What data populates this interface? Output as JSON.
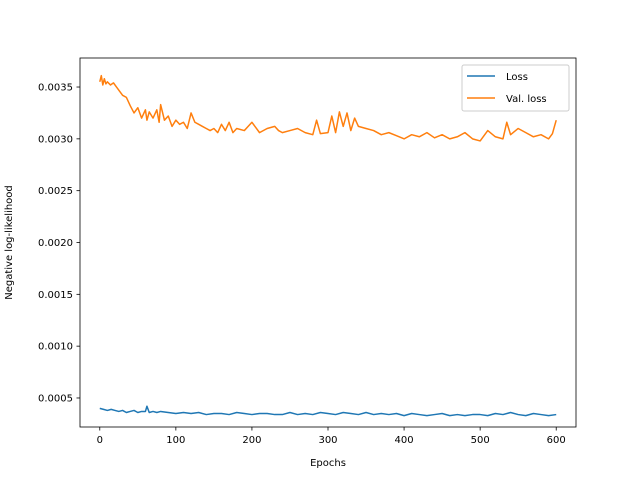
{
  "chart_data": {
    "type": "line",
    "title": "",
    "xlabel": "Epochs",
    "ylabel": "Negative log-likelihood",
    "xlim": [
      -26,
      626
    ],
    "ylim": [
      0.00022,
      0.00378
    ],
    "xticks": [
      {
        "value": 0,
        "label": "0"
      },
      {
        "value": 100,
        "label": "100"
      },
      {
        "value": 200,
        "label": "200"
      },
      {
        "value": 300,
        "label": "300"
      },
      {
        "value": 400,
        "label": "400"
      },
      {
        "value": 500,
        "label": "500"
      },
      {
        "value": 600,
        "label": "600"
      }
    ],
    "yticks": [
      {
        "value": 0.0005,
        "label": "0.0005"
      },
      {
        "value": 0.001,
        "label": "0.0010"
      },
      {
        "value": 0.0015,
        "label": "0.0015"
      },
      {
        "value": 0.002,
        "label": "0.0020"
      },
      {
        "value": 0.0025,
        "label": "0.0025"
      },
      {
        "value": 0.003,
        "label": "0.0030"
      },
      {
        "value": 0.0035,
        "label": "0.0035"
      }
    ],
    "grid": false,
    "legend": {
      "placement": "top-right",
      "entries": [
        "Loss",
        "Val. loss"
      ]
    },
    "series": [
      {
        "name": "Loss",
        "color": "#1f77b4",
        "x": [
          0,
          5,
          10,
          15,
          20,
          25,
          30,
          35,
          40,
          45,
          50,
          55,
          60,
          62,
          65,
          70,
          75,
          80,
          90,
          100,
          110,
          120,
          130,
          140,
          150,
          160,
          170,
          180,
          190,
          200,
          210,
          220,
          230,
          240,
          250,
          260,
          270,
          280,
          290,
          300,
          310,
          320,
          330,
          340,
          350,
          360,
          370,
          380,
          390,
          400,
          410,
          420,
          430,
          440,
          450,
          460,
          470,
          480,
          490,
          500,
          510,
          520,
          530,
          540,
          550,
          560,
          570,
          580,
          590,
          600
        ],
        "y": [
          0.0004,
          0.00039,
          0.00038,
          0.00039,
          0.00038,
          0.00037,
          0.00038,
          0.00036,
          0.00037,
          0.00038,
          0.00036,
          0.00037,
          0.00037,
          0.00042,
          0.00036,
          0.00037,
          0.00036,
          0.00037,
          0.00036,
          0.00035,
          0.00036,
          0.00035,
          0.00036,
          0.00034,
          0.00035,
          0.00035,
          0.00034,
          0.00036,
          0.00035,
          0.00034,
          0.00035,
          0.00035,
          0.00034,
          0.00034,
          0.00036,
          0.00034,
          0.00035,
          0.00034,
          0.00036,
          0.00035,
          0.00034,
          0.00036,
          0.00035,
          0.00034,
          0.00036,
          0.00034,
          0.00035,
          0.00034,
          0.00035,
          0.00033,
          0.00035,
          0.00034,
          0.00033,
          0.00034,
          0.00035,
          0.00033,
          0.00034,
          0.00033,
          0.00034,
          0.00034,
          0.00033,
          0.00035,
          0.00034,
          0.00036,
          0.00034,
          0.00033,
          0.00035,
          0.00034,
          0.00033,
          0.00034
        ]
      },
      {
        "name": "Val. loss",
        "color": "#ff7f0e",
        "x": [
          0,
          2,
          4,
          6,
          8,
          10,
          14,
          18,
          22,
          26,
          30,
          35,
          40,
          45,
          50,
          55,
          60,
          62,
          65,
          70,
          75,
          78,
          80,
          85,
          90,
          95,
          100,
          105,
          110,
          115,
          120,
          125,
          130,
          135,
          140,
          145,
          150,
          155,
          160,
          165,
          170,
          175,
          180,
          190,
          200,
          210,
          220,
          230,
          235,
          240,
          250,
          260,
          270,
          280,
          285,
          290,
          300,
          305,
          310,
          315,
          320,
          325,
          330,
          335,
          340,
          350,
          360,
          370,
          380,
          390,
          400,
          410,
          420,
          430,
          440,
          450,
          460,
          470,
          480,
          490,
          500,
          510,
          520,
          530,
          535,
          540,
          550,
          560,
          570,
          580,
          590,
          595,
          600
        ],
        "y": [
          0.00355,
          0.00361,
          0.00352,
          0.00358,
          0.00353,
          0.00355,
          0.00352,
          0.00354,
          0.0035,
          0.00346,
          0.00342,
          0.0034,
          0.00332,
          0.00325,
          0.0033,
          0.0032,
          0.00328,
          0.00318,
          0.00326,
          0.0032,
          0.00328,
          0.00316,
          0.00333,
          0.00318,
          0.00322,
          0.00312,
          0.00318,
          0.00314,
          0.00316,
          0.0031,
          0.00325,
          0.00316,
          0.00314,
          0.00312,
          0.0031,
          0.00308,
          0.0031,
          0.00306,
          0.00314,
          0.00308,
          0.00316,
          0.00306,
          0.0031,
          0.00308,
          0.00316,
          0.00306,
          0.0031,
          0.00312,
          0.00308,
          0.00306,
          0.00308,
          0.0031,
          0.00306,
          0.00304,
          0.00318,
          0.00305,
          0.00306,
          0.00322,
          0.00306,
          0.00326,
          0.00312,
          0.00325,
          0.00308,
          0.0032,
          0.00312,
          0.0031,
          0.00308,
          0.00304,
          0.00306,
          0.00303,
          0.003,
          0.00304,
          0.00302,
          0.00306,
          0.00301,
          0.00304,
          0.003,
          0.00302,
          0.00306,
          0.003,
          0.00298,
          0.00308,
          0.00302,
          0.003,
          0.00316,
          0.00304,
          0.0031,
          0.00306,
          0.00302,
          0.00304,
          0.003,
          0.00305,
          0.00318
        ]
      }
    ]
  }
}
